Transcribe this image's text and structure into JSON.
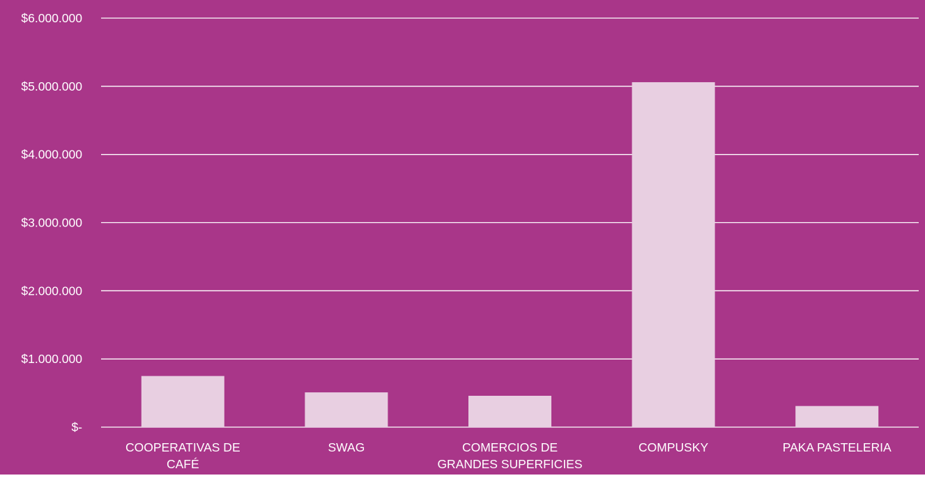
{
  "colors": {
    "background": "#a93689",
    "bar": "#e8cfe1",
    "gridline": "#ffffff",
    "text": "#ffffff"
  },
  "chart_data": {
    "type": "bar",
    "categories": [
      [
        "COOPERATIVAS DE",
        "CAFÉ"
      ],
      [
        "SWAG"
      ],
      [
        "COMERCIOS DE",
        "GRANDES SUPERFICIES"
      ],
      [
        "COMPUSKY"
      ],
      [
        "PAKA PASTELERIA"
      ]
    ],
    "values": [
      750000,
      510000,
      460000,
      5060000,
      310000
    ],
    "ylim": [
      0,
      6000000
    ],
    "yticks": [
      0,
      1000000,
      2000000,
      3000000,
      4000000,
      5000000,
      6000000
    ],
    "ytick_labels": [
      "$-",
      "$1.000.000",
      "$2.000.000",
      "$3.000.000",
      "$4.000.000",
      "$5.000.000",
      "$6.000.000"
    ],
    "grid": true,
    "legend": "none"
  }
}
